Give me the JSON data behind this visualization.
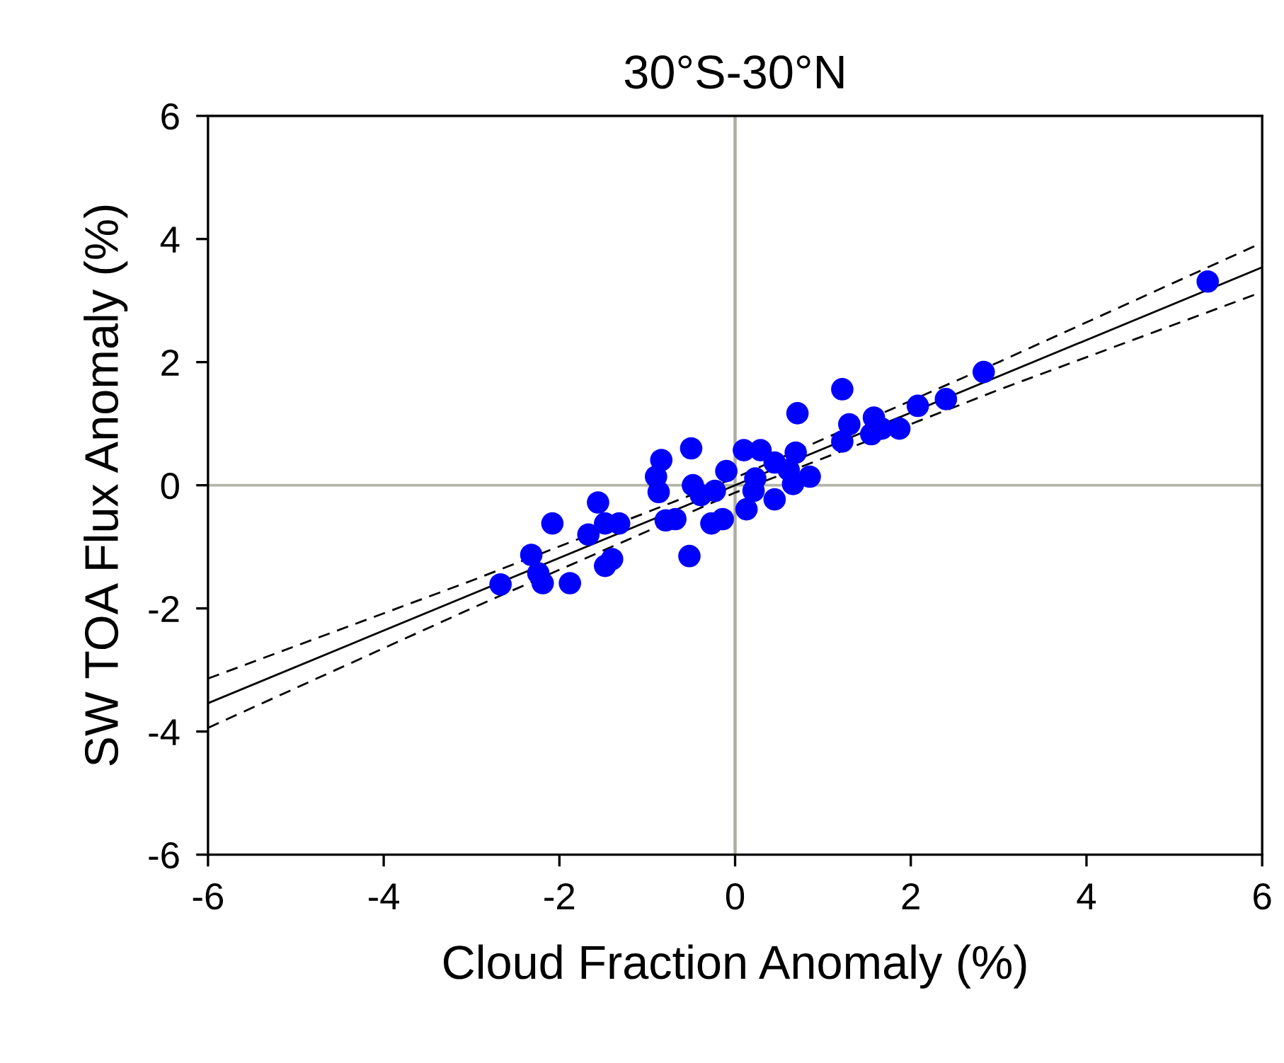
{
  "chart_data": {
    "type": "scatter",
    "title": "30°S-30°N",
    "xlabel": "Cloud Fraction Anomaly (%)",
    "ylabel": "SW TOA Flux Anomaly (%)",
    "xlim": [
      -6,
      6
    ],
    "ylim": [
      -6,
      6
    ],
    "xticks": [
      -6,
      -4,
      -2,
      0,
      2,
      4,
      6
    ],
    "yticks": [
      -6,
      -4,
      -2,
      0,
      2,
      4,
      6
    ],
    "grid": false,
    "legend": false,
    "ref_lines": [
      {
        "axis": "x",
        "value": 0,
        "label": null,
        "color": "#acaca0"
      },
      {
        "axis": "y",
        "value": 0,
        "label": null,
        "color": "#b4b4a8"
      }
    ],
    "series": [
      {
        "color": "#0000ff",
        "marker": "circle",
        "x": [
          -2.67,
          -2.32,
          -2.24,
          -2.19,
          -2.08,
          -1.88,
          -1.67,
          -1.56,
          -1.48,
          -1.32,
          -1.48,
          -1.4,
          -0.9,
          -0.84,
          -0.87,
          -0.79,
          -0.68,
          -0.5,
          -0.48,
          -0.39,
          -0.52,
          -0.27,
          -0.14,
          -0.23,
          -0.1,
          0.1,
          0.13,
          0.21,
          0.23,
          0.29,
          0.45,
          0.45,
          0.61,
          0.66,
          0.85,
          0.69,
          0.71,
          1.22,
          1.22,
          1.3,
          1.55,
          1.58,
          1.67,
          1.87,
          2.08,
          2.4,
          2.83,
          5.38
        ],
        "values": [
          -1.61,
          -1.13,
          -1.43,
          -1.59,
          -0.62,
          -1.59,
          -0.8,
          -0.28,
          -0.62,
          -0.62,
          -1.31,
          -1.2,
          0.14,
          0.41,
          -0.11,
          -0.57,
          -0.55,
          0.6,
          0.0,
          -0.16,
          -1.15,
          -0.62,
          -0.55,
          -0.09,
          0.23,
          0.57,
          -0.39,
          -0.09,
          0.11,
          0.57,
          0.37,
          -0.23,
          0.25,
          0.02,
          0.14,
          0.53,
          1.17,
          1.56,
          0.71,
          0.99,
          0.83,
          1.1,
          0.92,
          0.92,
          1.29,
          1.4,
          1.84,
          3.31
        ]
      },
      {
        "type": "line",
        "color": "#000000",
        "line_style": "solid",
        "x": [
          -6,
          6
        ],
        "values": [
          -3.54,
          3.54
        ]
      },
      {
        "type": "line",
        "color": "#000000",
        "line_style": "dashed",
        "x": [
          -6,
          -3,
          0,
          3,
          6
        ],
        "values": [
          -3.14,
          -1.55,
          0.12,
          2.0,
          3.94
        ]
      },
      {
        "type": "line",
        "color": "#000000",
        "line_style": "dashed",
        "x": [
          -6,
          -3,
          0,
          3,
          6
        ],
        "values": [
          -3.94,
          -2.0,
          -0.12,
          1.55,
          3.14
        ]
      }
    ]
  }
}
